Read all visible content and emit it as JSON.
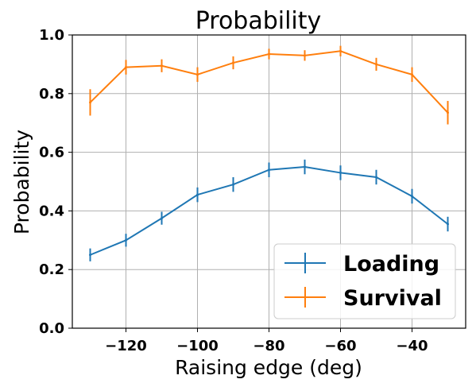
{
  "chart_data": {
    "type": "line",
    "title": "Probability",
    "xlabel": "Raising edge (deg)",
    "ylabel": "Probability",
    "x": [
      -130,
      -120,
      -110,
      -100,
      -90,
      -80,
      -70,
      -60,
      -50,
      -40,
      -30
    ],
    "xlim": [
      -135,
      -25
    ],
    "ylim": [
      0.0,
      1.0
    ],
    "xticks": [
      -120,
      -100,
      -80,
      -60,
      -40
    ],
    "xtick_labels": [
      "−120",
      "−100",
      "−80",
      "−60",
      "−40"
    ],
    "yticks": [
      0.0,
      0.2,
      0.4,
      0.6,
      0.8,
      1.0
    ],
    "ytick_labels": [
      "0.0",
      "0.2",
      "0.4",
      "0.6",
      "0.8",
      "1.0"
    ],
    "grid": true,
    "legend_position": "lower-right",
    "series": [
      {
        "name": "Loading",
        "color": "#1f77b4",
        "values": [
          0.25,
          0.3,
          0.375,
          0.455,
          0.49,
          0.54,
          0.55,
          0.53,
          0.515,
          0.45,
          0.355
        ],
        "errors": [
          0.022,
          0.022,
          0.022,
          0.025,
          0.025,
          0.025,
          0.025,
          0.025,
          0.025,
          0.025,
          0.025
        ]
      },
      {
        "name": "Survival",
        "color": "#ff7f0e",
        "values": [
          0.77,
          0.89,
          0.895,
          0.865,
          0.905,
          0.935,
          0.93,
          0.945,
          0.9,
          0.865,
          0.735
        ],
        "errors": [
          0.045,
          0.025,
          0.022,
          0.025,
          0.022,
          0.018,
          0.018,
          0.018,
          0.022,
          0.025,
          0.04
        ]
      }
    ]
  }
}
